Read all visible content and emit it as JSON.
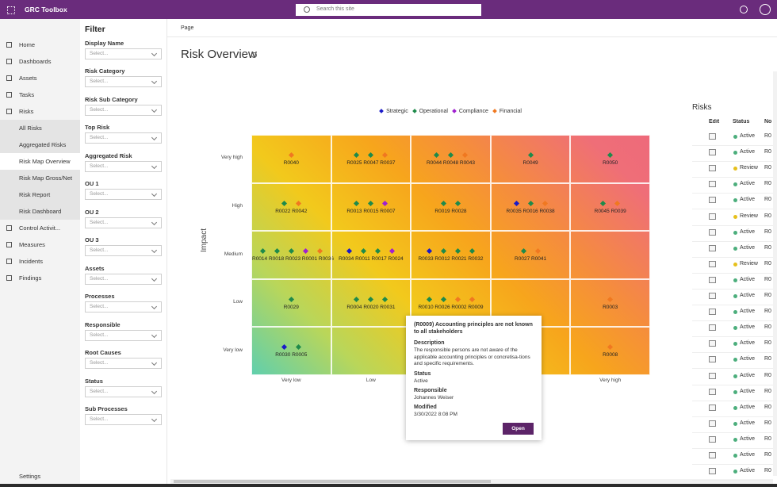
{
  "top_bar": {
    "app_name": "GRC Toolbox",
    "search_placeholder": "Search this site"
  },
  "nav": {
    "items": [
      "Home",
      "Dashboards",
      "Assets",
      "Tasks",
      "Risks",
      "Control Activit...",
      "Measures",
      "Incidents",
      "Findings"
    ],
    "sub_items": [
      "All Risks",
      "Aggregated Risks",
      "Risk Map Overview",
      "Risk Map Gross/Net",
      "Risk Report",
      "Risk Dashboard"
    ],
    "selected_sub_item": 2,
    "settings": "Settings"
  },
  "filter": {
    "title": "Filter",
    "fields": [
      {
        "label": "Display Name",
        "placeholder": "Select..."
      },
      {
        "label": "Risk Category",
        "placeholder": "Select..."
      },
      {
        "label": "Risk Sub Category",
        "placeholder": "Select..."
      },
      {
        "label": "Top Risk",
        "placeholder": "Select..."
      },
      {
        "label": "Aggregated Risk",
        "placeholder": "Select..."
      },
      {
        "label": "OU 1",
        "placeholder": "Select..."
      },
      {
        "label": "OU 2",
        "placeholder": "Select..."
      },
      {
        "label": "OU 3",
        "placeholder": "Select..."
      },
      {
        "label": "Assets",
        "placeholder": "Select..."
      },
      {
        "label": "Processes",
        "placeholder": "Select..."
      },
      {
        "label": "Responsible",
        "placeholder": "Select..."
      },
      {
        "label": "Root Causes",
        "placeholder": "Select..."
      },
      {
        "label": "Status",
        "placeholder": "Select..."
      },
      {
        "label": "Sub Processes",
        "placeholder": "Select..."
      }
    ]
  },
  "page": {
    "breadcrumb": "Page",
    "title": "Risk Overview"
  },
  "risk_map": {
    "legend": [
      {
        "name": "Strategic",
        "color": "#1a1ac8"
      },
      {
        "name": "Operational",
        "color": "#1e8a4a"
      },
      {
        "name": "Compliance",
        "color": "#a020d0"
      },
      {
        "name": "Financial",
        "color": "#f07820"
      }
    ],
    "y_axis_title": "Impact",
    "row_labels": [
      "Very high",
      "High",
      "Medium",
      "Low",
      "Very low"
    ],
    "column_labels": [
      "Very low",
      "Low",
      null,
      null,
      "Very high"
    ],
    "rows": [
      [
        [
          {
            "id": "R0040",
            "type": "Financial"
          }
        ],
        [
          {
            "id": "R0025",
            "type": "Operational"
          },
          {
            "id": "R0047",
            "type": "Operational"
          },
          {
            "id": "R0037",
            "type": "Financial"
          }
        ],
        [
          {
            "id": "R0044",
            "type": "Operational"
          },
          {
            "id": "R0048",
            "type": "Operational"
          },
          {
            "id": "R0043",
            "type": "Financial"
          }
        ],
        [
          {
            "id": "R0049",
            "type": "Operational"
          }
        ],
        [
          {
            "id": "R0050",
            "type": "Operational"
          }
        ]
      ],
      [
        [
          {
            "id": "R0022",
            "type": "Operational"
          },
          {
            "id": "R0042",
            "type": "Financial"
          }
        ],
        [
          {
            "id": "R0013",
            "type": "Operational"
          },
          {
            "id": "R0015",
            "type": "Operational"
          },
          {
            "id": "R0007",
            "type": "Compliance"
          }
        ],
        [
          {
            "id": "R0019",
            "type": "Operational"
          },
          {
            "id": "R0028",
            "type": "Operational"
          }
        ],
        [
          {
            "id": "R0035",
            "type": "Strategic"
          },
          {
            "id": "R0016",
            "type": "Operational"
          },
          {
            "id": "R0038",
            "type": "Financial"
          }
        ],
        [
          {
            "id": "R0045",
            "type": "Operational"
          },
          {
            "id": "R0039",
            "type": "Financial"
          }
        ]
      ],
      [
        [
          {
            "id": "R0014",
            "type": "Operational"
          },
          {
            "id": "R0018",
            "type": "Operational"
          },
          {
            "id": "R0023",
            "type": "Operational"
          },
          {
            "id": "R0001",
            "type": "Compliance"
          },
          {
            "id": "R0036",
            "type": "Financial"
          }
        ],
        [
          {
            "id": "R0034",
            "type": "Strategic"
          },
          {
            "id": "R0011",
            "type": "Operational"
          },
          {
            "id": "R0017",
            "type": "Operational"
          },
          {
            "id": "R0024",
            "type": "Compliance"
          }
        ],
        [
          {
            "id": "R0033",
            "type": "Strategic"
          },
          {
            "id": "R0012",
            "type": "Operational"
          },
          {
            "id": "R0021",
            "type": "Operational"
          },
          {
            "id": "R0032",
            "type": "Operational"
          }
        ],
        [
          {
            "id": "R0027",
            "type": "Operational"
          },
          {
            "id": "R0041",
            "type": "Financial"
          }
        ],
        []
      ],
      [
        [
          {
            "id": "R0029",
            "type": "Operational"
          }
        ],
        [
          {
            "id": "R0004",
            "type": "Operational"
          },
          {
            "id": "R0020",
            "type": "Operational"
          },
          {
            "id": "R0031",
            "type": "Operational"
          }
        ],
        [
          {
            "id": "R0010",
            "type": "Operational"
          },
          {
            "id": "R0026",
            "type": "Operational"
          },
          {
            "id": "R0002",
            "type": "Financial"
          },
          {
            "id": "R0009",
            "type": "Financial"
          }
        ],
        [],
        [
          {
            "id": "R0003",
            "type": "Financial"
          }
        ]
      ],
      [
        [
          {
            "id": "R0030",
            "type": "Strategic"
          },
          {
            "id": "R0005",
            "type": "Operational"
          }
        ],
        [],
        [],
        [],
        [
          {
            "id": "R0008",
            "type": "Financial"
          }
        ]
      ]
    ]
  },
  "tooltip": {
    "title": "(R0009) Accounting principles are not known to all stakeholders",
    "sections": [
      {
        "heading": "Description",
        "text": "The responsible persons are not aware of the applicable accounting principles or concretisa-tions and specific requirements."
      },
      {
        "heading": "Status",
        "text": "Active"
      },
      {
        "heading": "Responsible",
        "text": "Johannes Weiser"
      },
      {
        "heading": "Modified",
        "text": "3/30/2022 8:08 PM"
      }
    ],
    "button": "Open"
  },
  "risks_panel": {
    "title": "Risks",
    "columns": [
      "Edit",
      "Status",
      "No"
    ],
    "status_colors": {
      "Active": "#4cae7c",
      "Review": "#e6c01c"
    },
    "rows": [
      {
        "status": "Active",
        "no": "R0"
      },
      {
        "status": "Active",
        "no": "R0"
      },
      {
        "status": "Review",
        "no": "R0"
      },
      {
        "status": "Active",
        "no": "R0"
      },
      {
        "status": "Active",
        "no": "R0"
      },
      {
        "status": "Review",
        "no": "R0"
      },
      {
        "status": "Active",
        "no": "R0"
      },
      {
        "status": "Active",
        "no": "R0"
      },
      {
        "status": "Review",
        "no": "R0"
      },
      {
        "status": "Active",
        "no": "R0"
      },
      {
        "status": "Active",
        "no": "R0"
      },
      {
        "status": "Active",
        "no": "R0"
      },
      {
        "status": "Active",
        "no": "R0"
      },
      {
        "status": "Active",
        "no": "R0"
      },
      {
        "status": "Active",
        "no": "R0"
      },
      {
        "status": "Active",
        "no": "R0"
      },
      {
        "status": "Active",
        "no": "R0"
      },
      {
        "status": "Active",
        "no": "R0"
      },
      {
        "status": "Active",
        "no": "R0"
      },
      {
        "status": "Active",
        "no": "R0"
      },
      {
        "status": "Active",
        "no": "R0"
      },
      {
        "status": "Active",
        "no": "R0"
      }
    ]
  }
}
